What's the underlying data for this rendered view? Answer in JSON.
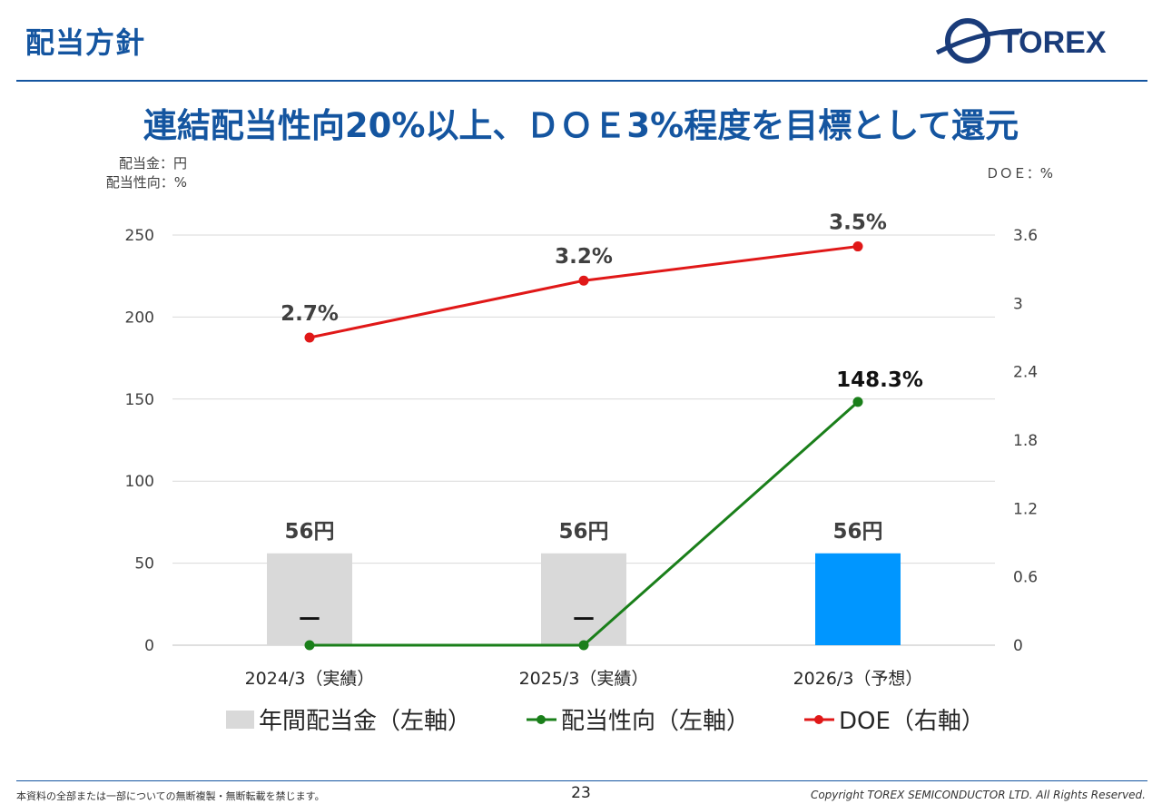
{
  "header": {
    "section_title": "配当方針",
    "logo_text": "TOREX",
    "headline": "連結配当性向20%以上、ＤＯＥ3%程度を目標として還元"
  },
  "units": {
    "left_line1": "配当金：円",
    "left_line2": "配当性向：%",
    "right": "ＤＯＥ：%"
  },
  "chart_data": {
    "type": "bar",
    "categories": [
      "2024/3（実績）",
      "2025/3（実績）",
      "2026/3（予想）"
    ],
    "left_axis": {
      "min": 0,
      "max": 250,
      "ticks": [
        0,
        50,
        100,
        150,
        200,
        250
      ]
    },
    "right_axis": {
      "min": 0,
      "max": 3.6,
      "ticks": [
        "0",
        "0.6",
        "1.2",
        "1.8",
        "2.4",
        "3",
        "3.6"
      ]
    },
    "series": [
      {
        "name": "年間配当金（左軸）",
        "type": "bar",
        "axis": "left",
        "values": [
          56,
          56,
          56
        ],
        "labels": [
          "56円",
          "56円",
          "56円"
        ],
        "colors": [
          "#d9d9d9",
          "#d9d9d9",
          "#0096ff"
        ]
      },
      {
        "name": "配当性向（左軸）",
        "type": "line",
        "axis": "left",
        "values": [
          0,
          0,
          148.3
        ],
        "labels": [
          "－",
          "－",
          "148.3%"
        ],
        "color": "#1a7f1a"
      },
      {
        "name": "DOE（右軸）",
        "type": "line",
        "axis": "right",
        "values": [
          2.7,
          3.2,
          3.5
        ],
        "labels": [
          "2.7%",
          "3.2%",
          "3.5%"
        ],
        "color": "#e01818"
      }
    ],
    "grid": true,
    "legend": "bottom"
  },
  "footer": {
    "notice": "本資料の全部または一部についての無断複製・無断転載を禁じます。",
    "page": "23",
    "copyright": "Copyright TOREX SEMICONDUCTOR LTD.  All Rights Reserved."
  }
}
